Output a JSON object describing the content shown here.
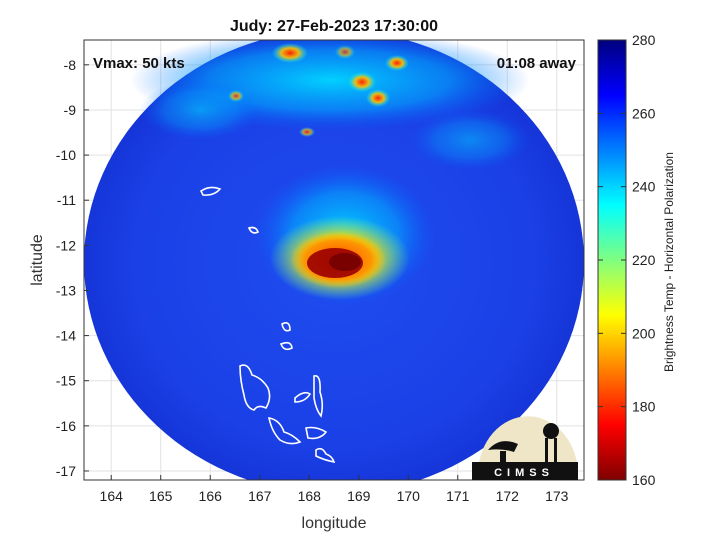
{
  "title": "Judy: 27-Feb-2023 17:30:00",
  "vmax_label": "Vmax: 50 kts",
  "away_label": "01:08 away",
  "xaxis": {
    "label": "longitude",
    "range": [
      163.45,
      173.55
    ],
    "ticks": [
      164,
      165,
      166,
      167,
      168,
      169,
      170,
      171,
      172,
      173
    ]
  },
  "yaxis": {
    "label": "latitude",
    "range": [
      -17.2,
      -7.45
    ],
    "ticks": [
      -8,
      -9,
      -10,
      -11,
      -12,
      -13,
      -14,
      -15,
      -16,
      -17
    ]
  },
  "grid": true,
  "colorbar": {
    "label": "Brightness Temp - Horizontal Polarization",
    "range": [
      160,
      280
    ],
    "ticks": [
      160,
      180,
      200,
      220,
      240,
      260,
      280
    ],
    "colormap": "jet"
  },
  "logo": {
    "text": "CIMSS"
  },
  "colors": {
    "background_cold": "#1a3fe0",
    "core_warm": "#8b0000",
    "land_outline": "#ffffff"
  }
}
